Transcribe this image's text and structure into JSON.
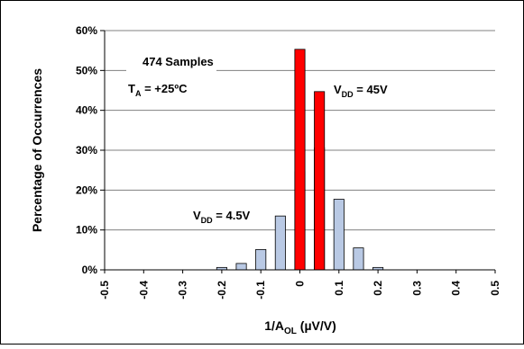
{
  "chart_data": {
    "type": "bar",
    "xlabel": {
      "base": "1/A",
      "sub": "OL",
      "rest": " (µV/V)"
    },
    "ylabel": "Percentage of Occurrences",
    "x_ticks": [
      "-0.5",
      "-0.4",
      "-0.3",
      "-0.2",
      "-0.1",
      "0",
      "0.1",
      "0.2",
      "0.3",
      "0.4",
      "0.5"
    ],
    "y_ticks": [
      "0%",
      "10%",
      "20%",
      "30%",
      "40%",
      "50%",
      "60%"
    ],
    "xlim": [
      -0.5,
      0.5
    ],
    "ylim": [
      0,
      60
    ],
    "grid": "horizontal",
    "series": [
      {
        "vdd": "4.5V",
        "color": "#b9c9e4",
        "points": [
          {
            "x": -0.2,
            "y": 0.6
          },
          {
            "x": -0.15,
            "y": 1.6
          },
          {
            "x": -0.1,
            "y": 5.1
          },
          {
            "x": -0.05,
            "y": 13.5
          },
          {
            "x": 0.0,
            "y": 24.6
          },
          {
            "x": 0.05,
            "y": 30.6
          },
          {
            "x": 0.1,
            "y": 17.7
          },
          {
            "x": 0.15,
            "y": 5.5
          },
          {
            "x": 0.2,
            "y": 0.6
          }
        ]
      },
      {
        "vdd": "45V",
        "color": "#ff0000",
        "points": [
          {
            "x": 0.0,
            "y": 55.3
          },
          {
            "x": 0.05,
            "y": 44.7
          }
        ]
      }
    ],
    "annotations": {
      "samples": "474 Samples",
      "temp": {
        "base": "T",
        "sub": "A",
        "rest": " = +25ºC"
      },
      "vdd_low": {
        "base": "V",
        "sub": "DD",
        "rest": " = 4.5V"
      },
      "vdd_high": {
        "base": "V",
        "sub": "DD",
        "rest": " = 45V"
      }
    }
  }
}
